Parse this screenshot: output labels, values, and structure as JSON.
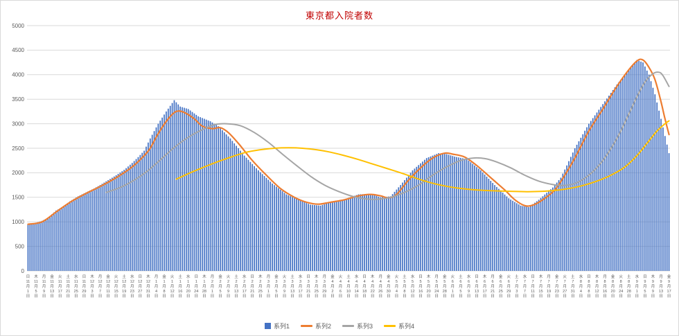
{
  "chart": {
    "title": "東京都入院者数",
    "title_color": "#C00000",
    "axis_text_color": "#595959",
    "gridline_color": "#D9D9D9",
    "legend": [
      {
        "label": "系列1",
        "color": "#4472C4",
        "marker": "bar"
      },
      {
        "label": "系列2",
        "color": "#ED7D31",
        "marker": "line"
      },
      {
        "label": "系列3",
        "color": "#A5A5A5",
        "marker": "line"
      },
      {
        "label": "系列4",
        "color": "#FFC000",
        "marker": "line"
      }
    ]
  },
  "chart_data": {
    "type": "combo",
    "title": "東京都入院者数",
    "legend_position": "bottom",
    "grid": true,
    "y_axis": {
      "min": 0,
      "max": 5000,
      "step": 500
    },
    "x_axis": {
      "start_date": "2020-11-01",
      "days": 321,
      "tick_interval_days": 4,
      "weekday_chars": [
        "日",
        "月",
        "火",
        "水",
        "木",
        "金",
        "土"
      ],
      "month_suffix": "月",
      "day_suffix": "日",
      "first_tick_label": "日 11月1日",
      "last_tick_label": "金 9月17日"
    },
    "series": [
      {
        "name": "系列1",
        "type": "bar",
        "color": "#4472C4",
        "keypoints": [
          [
            0,
            950
          ],
          [
            4,
            980
          ],
          [
            7,
            1020
          ],
          [
            10,
            1080
          ],
          [
            14,
            1230
          ],
          [
            18,
            1320
          ],
          [
            21,
            1420
          ],
          [
            25,
            1520
          ],
          [
            29,
            1600
          ],
          [
            33,
            1680
          ],
          [
            36,
            1750
          ],
          [
            40,
            1850
          ],
          [
            44,
            1950
          ],
          [
            48,
            2060
          ],
          [
            52,
            2200
          ],
          [
            55,
            2320
          ],
          [
            58,
            2450
          ],
          [
            61,
            2700
          ],
          [
            65,
            3000
          ],
          [
            69,
            3250
          ],
          [
            73,
            3480
          ],
          [
            76,
            3350
          ],
          [
            80,
            3300
          ],
          [
            85,
            3150
          ],
          [
            91,
            3050
          ],
          [
            95,
            2950
          ],
          [
            101,
            2700
          ],
          [
            108,
            2350
          ],
          [
            115,
            2050
          ],
          [
            122,
            1780
          ],
          [
            129,
            1560
          ],
          [
            136,
            1430
          ],
          [
            141,
            1350
          ],
          [
            146,
            1330
          ],
          [
            151,
            1400
          ],
          [
            158,
            1460
          ],
          [
            165,
            1560
          ],
          [
            171,
            1570
          ],
          [
            176,
            1500
          ],
          [
            181,
            1520
          ],
          [
            186,
            1750
          ],
          [
            192,
            2050
          ],
          [
            199,
            2300
          ],
          [
            205,
            2400
          ],
          [
            209,
            2380
          ],
          [
            213,
            2330
          ],
          [
            219,
            2280
          ],
          [
            226,
            2050
          ],
          [
            233,
            1750
          ],
          [
            240,
            1480
          ],
          [
            246,
            1330
          ],
          [
            250,
            1300
          ],
          [
            255,
            1450
          ],
          [
            262,
            1700
          ],
          [
            266,
            1900
          ],
          [
            269,
            2150
          ],
          [
            273,
            2500
          ],
          [
            280,
            3000
          ],
          [
            287,
            3400
          ],
          [
            294,
            3800
          ],
          [
            300,
            4100
          ],
          [
            304,
            4300
          ],
          [
            307,
            4250
          ],
          [
            310,
            4000
          ],
          [
            313,
            3600
          ],
          [
            316,
            3100
          ],
          [
            318,
            2750
          ],
          [
            320,
            2400
          ]
        ]
      },
      {
        "name": "系列2",
        "type": "line",
        "color": "#ED7D31",
        "width": 2.2,
        "keypoints": [
          [
            0,
            950
          ],
          [
            7,
            1000
          ],
          [
            14,
            1200
          ],
          [
            21,
            1400
          ],
          [
            29,
            1580
          ],
          [
            36,
            1720
          ],
          [
            44,
            1900
          ],
          [
            52,
            2120
          ],
          [
            58,
            2350
          ],
          [
            61,
            2500
          ],
          [
            65,
            2800
          ],
          [
            70,
            3100
          ],
          [
            74,
            3250
          ],
          [
            78,
            3230
          ],
          [
            83,
            3100
          ],
          [
            87,
            2950
          ],
          [
            92,
            2900
          ],
          [
            96,
            2920
          ],
          [
            100,
            2820
          ],
          [
            105,
            2600
          ],
          [
            112,
            2250
          ],
          [
            119,
            1950
          ],
          [
            126,
            1680
          ],
          [
            133,
            1500
          ],
          [
            139,
            1400
          ],
          [
            145,
            1360
          ],
          [
            151,
            1400
          ],
          [
            158,
            1450
          ],
          [
            165,
            1530
          ],
          [
            171,
            1560
          ],
          [
            176,
            1530
          ],
          [
            180,
            1490
          ],
          [
            184,
            1560
          ],
          [
            190,
            1850
          ],
          [
            196,
            2100
          ],
          [
            202,
            2300
          ],
          [
            208,
            2400
          ],
          [
            212,
            2380
          ],
          [
            218,
            2320
          ],
          [
            224,
            2150
          ],
          [
            231,
            1900
          ],
          [
            238,
            1650
          ],
          [
            243,
            1450
          ],
          [
            248,
            1330
          ],
          [
            252,
            1340
          ],
          [
            257,
            1450
          ],
          [
            263,
            1650
          ],
          [
            268,
            1950
          ],
          [
            273,
            2300
          ],
          [
            280,
            2850
          ],
          [
            287,
            3300
          ],
          [
            293,
            3700
          ],
          [
            299,
            4050
          ],
          [
            304,
            4280
          ],
          [
            307,
            4300
          ],
          [
            310,
            4150
          ],
          [
            313,
            3900
          ],
          [
            316,
            3450
          ],
          [
            318,
            3100
          ],
          [
            320,
            2780
          ]
        ]
      },
      {
        "name": "系列3",
        "type": "line",
        "color": "#A5A5A5",
        "width": 2,
        "keypoints": [
          [
            39,
            1600
          ],
          [
            46,
            1700
          ],
          [
            53,
            1850
          ],
          [
            60,
            2050
          ],
          [
            67,
            2300
          ],
          [
            74,
            2550
          ],
          [
            81,
            2750
          ],
          [
            88,
            2900
          ],
          [
            93,
            2980
          ],
          [
            99,
            3000
          ],
          [
            106,
            2960
          ],
          [
            113,
            2820
          ],
          [
            120,
            2620
          ],
          [
            127,
            2380
          ],
          [
            134,
            2150
          ],
          [
            141,
            1930
          ],
          [
            148,
            1750
          ],
          [
            155,
            1620
          ],
          [
            162,
            1520
          ],
          [
            168,
            1470
          ],
          [
            174,
            1460
          ],
          [
            181,
            1500
          ],
          [
            188,
            1600
          ],
          [
            195,
            1750
          ],
          [
            202,
            1950
          ],
          [
            209,
            2120
          ],
          [
            216,
            2250
          ],
          [
            222,
            2300
          ],
          [
            228,
            2290
          ],
          [
            234,
            2220
          ],
          [
            241,
            2100
          ],
          [
            248,
            1950
          ],
          [
            255,
            1830
          ],
          [
            262,
            1760
          ],
          [
            267,
            1740
          ],
          [
            273,
            1780
          ],
          [
            280,
            1950
          ],
          [
            287,
            2250
          ],
          [
            294,
            2700
          ],
          [
            300,
            3200
          ],
          [
            304,
            3550
          ],
          [
            308,
            3850
          ],
          [
            312,
            4020
          ],
          [
            315,
            4050
          ],
          [
            317,
            3980
          ],
          [
            320,
            3760
          ]
        ]
      },
      {
        "name": "系列4",
        "type": "line",
        "color": "#FFC000",
        "width": 2,
        "keypoints": [
          [
            74,
            1870
          ],
          [
            81,
            2000
          ],
          [
            88,
            2120
          ],
          [
            95,
            2230
          ],
          [
            102,
            2330
          ],
          [
            109,
            2420
          ],
          [
            116,
            2470
          ],
          [
            123,
            2500
          ],
          [
            130,
            2510
          ],
          [
            137,
            2500
          ],
          [
            144,
            2470
          ],
          [
            151,
            2420
          ],
          [
            158,
            2350
          ],
          [
            165,
            2270
          ],
          [
            172,
            2180
          ],
          [
            179,
            2090
          ],
          [
            186,
            2000
          ],
          [
            193,
            1900
          ],
          [
            200,
            1810
          ],
          [
            207,
            1740
          ],
          [
            214,
            1690
          ],
          [
            221,
            1660
          ],
          [
            228,
            1640
          ],
          [
            235,
            1630
          ],
          [
            242,
            1620
          ],
          [
            249,
            1615
          ],
          [
            256,
            1620
          ],
          [
            263,
            1640
          ],
          [
            270,
            1680
          ],
          [
            277,
            1740
          ],
          [
            284,
            1830
          ],
          [
            291,
            1950
          ],
          [
            298,
            2120
          ],
          [
            304,
            2350
          ],
          [
            309,
            2600
          ],
          [
            314,
            2850
          ],
          [
            318,
            3000
          ],
          [
            320,
            3060
          ]
        ]
      }
    ],
    "note": "keypoints are [day_index_from_start_date, value] as read from the chart; intermediate daily values are interpolated"
  }
}
